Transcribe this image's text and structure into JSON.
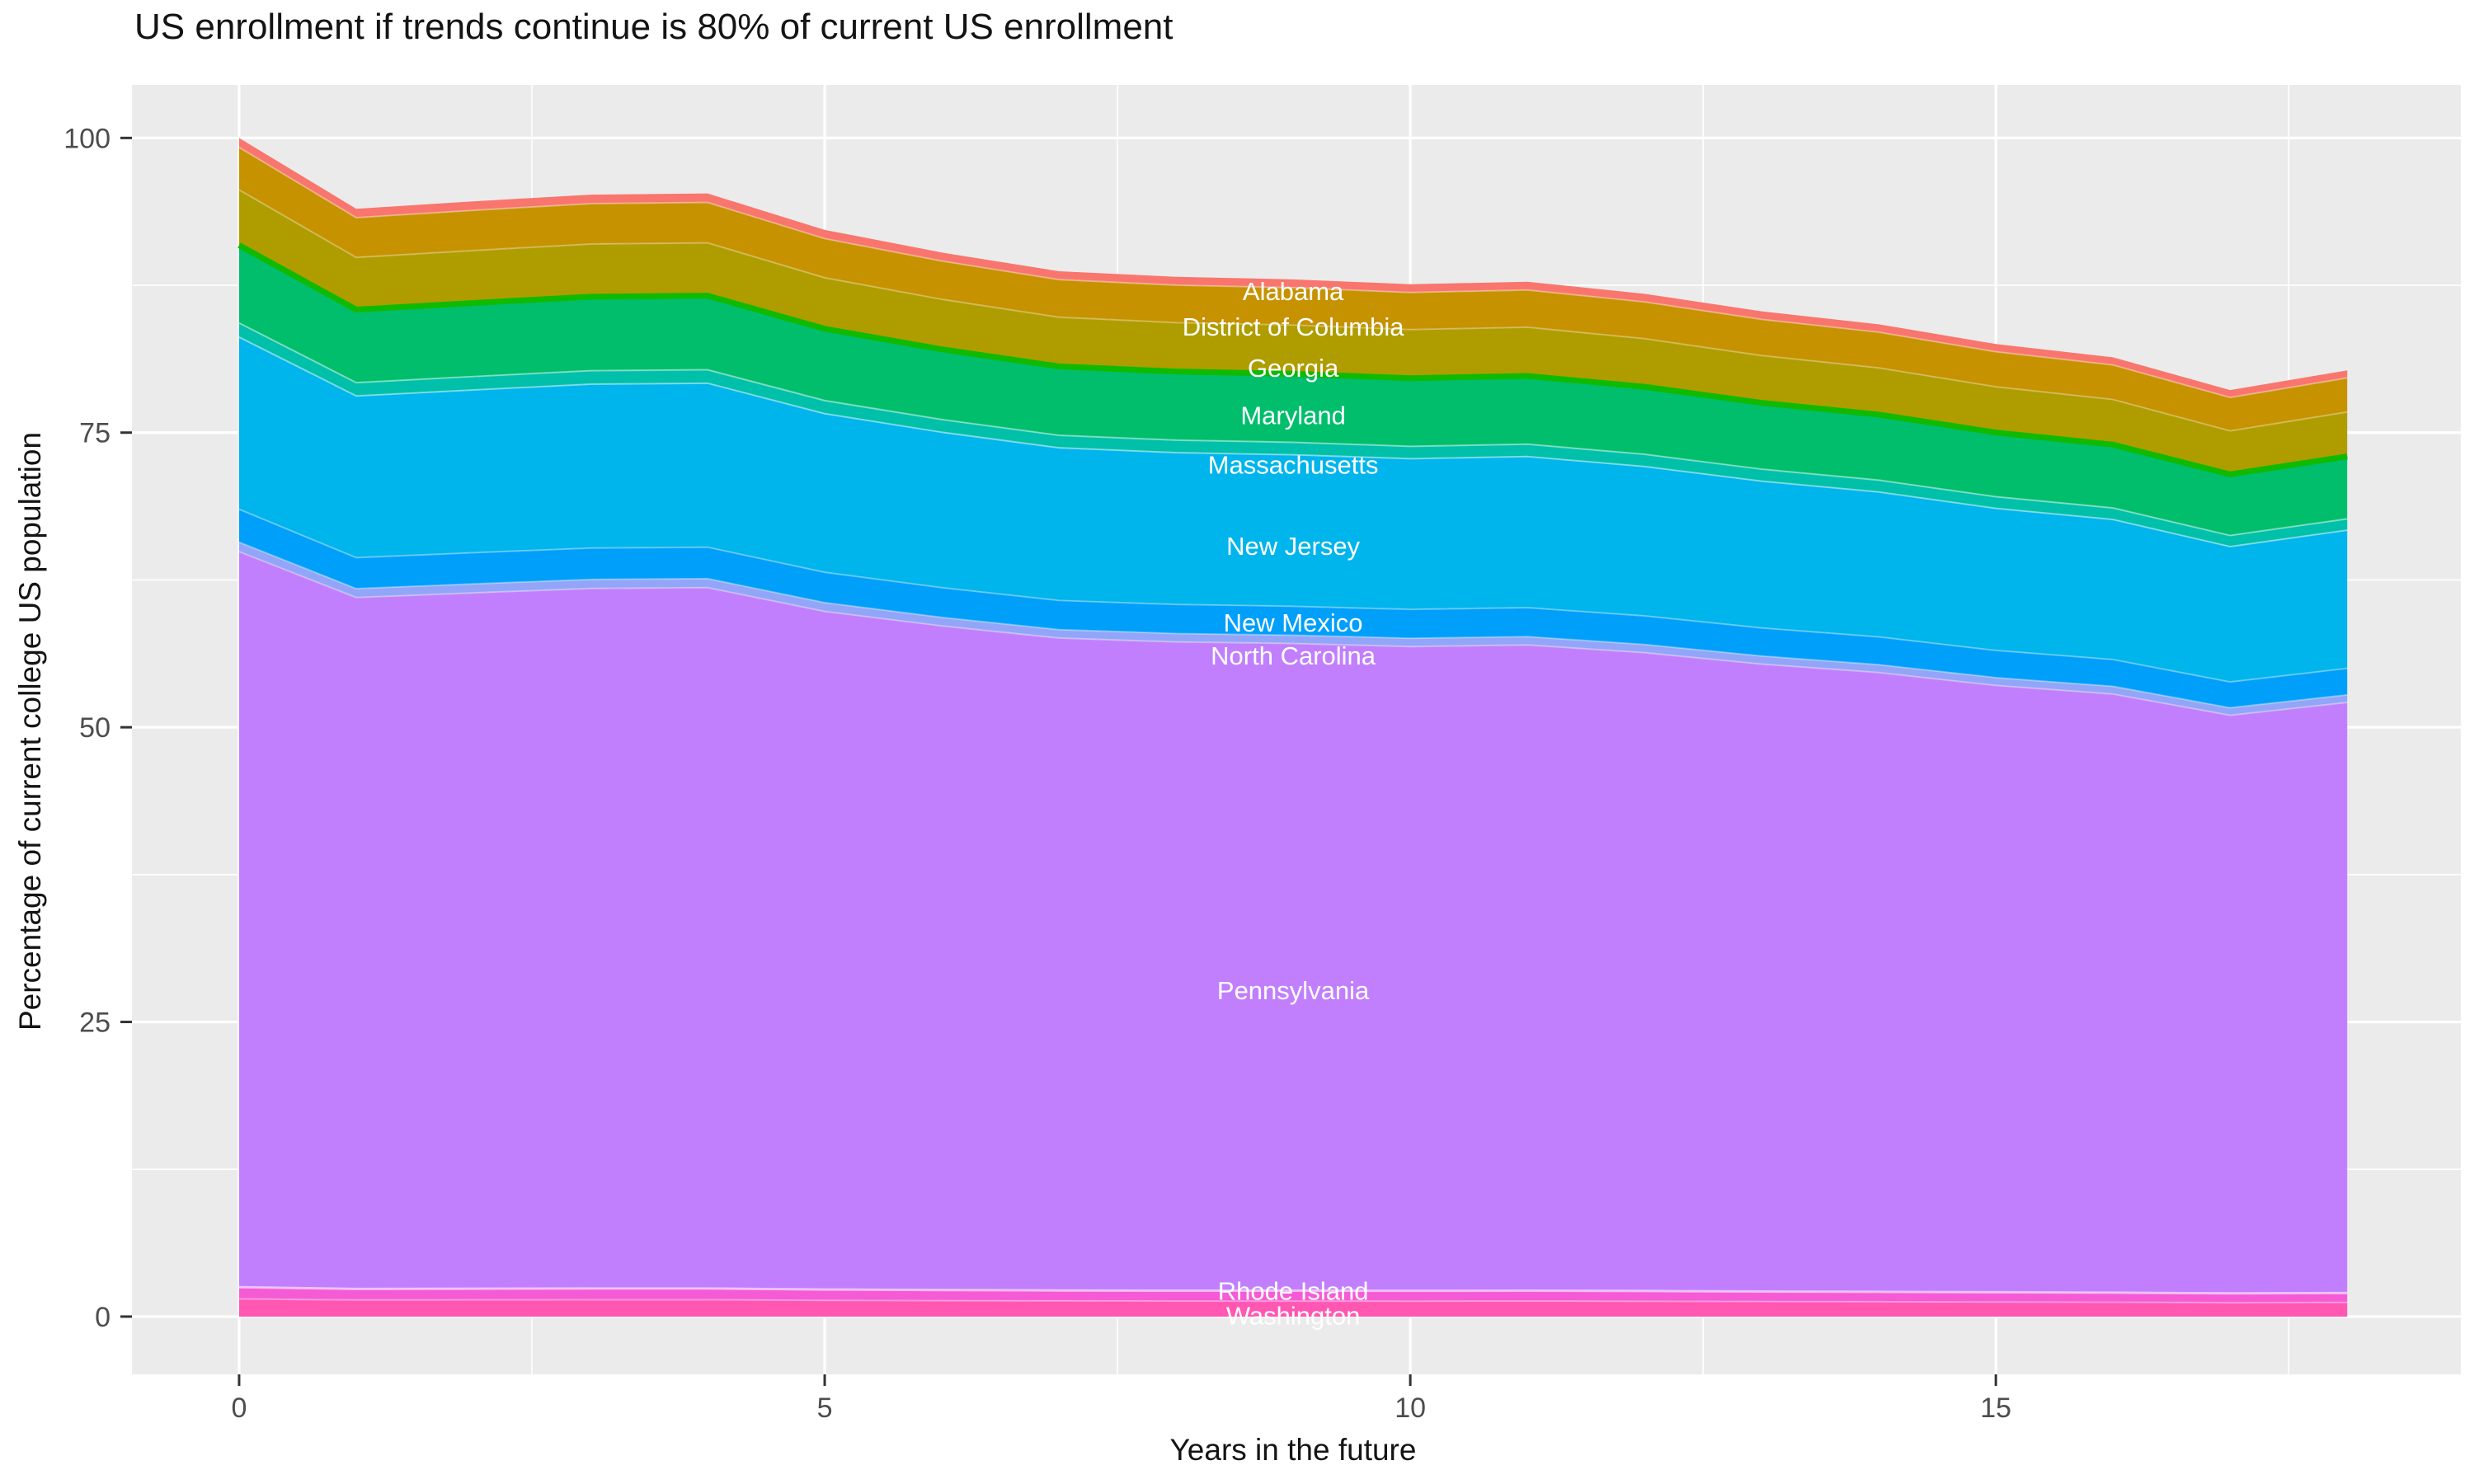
{
  "title": "US enrollment if trends continue is 80% of current US enrollment",
  "panel": {
    "bg": "#EBEBEB",
    "grid_major_color": "#FFFFFF",
    "grid_minor_color": "#FFFFFF",
    "tick_color": "#333333",
    "tick_label_color": "#4D4D4D"
  },
  "chart_data": {
    "type": "area",
    "stacked": true,
    "title": "US enrollment if trends continue is 80% of current US enrollment",
    "xlabel": "Years in the future",
    "ylabel": "Percentage of current college US population",
    "xlim": [
      -0.915,
      18.97
    ],
    "ylim": [
      -4.9,
      104.5
    ],
    "grid": true,
    "legend_position": "none",
    "x": [
      0,
      1,
      2,
      3,
      4,
      5,
      6,
      7,
      8,
      9,
      10,
      11,
      12,
      13,
      14,
      15,
      16,
      17,
      18
    ],
    "x_ticks": [
      {
        "value": 0,
        "label": "0"
      },
      {
        "value": 5,
        "label": "5"
      },
      {
        "value": 10,
        "label": "10"
      },
      {
        "value": 15,
        "label": "15"
      }
    ],
    "y_ticks": [
      {
        "value": 0,
        "label": "0"
      },
      {
        "value": 25,
        "label": "25"
      },
      {
        "value": 50,
        "label": "50"
      },
      {
        "value": 75,
        "label": "75"
      },
      {
        "value": 100,
        "label": "100"
      }
    ],
    "x_minor": [
      2.5,
      7.5,
      12.5,
      17.5
    ],
    "y_minor": [
      12.5,
      37.5,
      62.5,
      87.5
    ],
    "stack_totals": [
      100,
      94.0,
      94.6,
      95.2,
      95.3,
      92.2,
      90.3,
      88.7,
      88.2,
      88.0,
      87.6,
      87.8,
      86.8,
      85.3,
      84.2,
      82.5,
      81.4,
      78.6,
      80.3
    ],
    "series": [
      {
        "name": "Alabama",
        "color": "#F8766D",
        "divider": {
          "color": "rgba(255,255,255,0.35)",
          "width": 2
        },
        "values": [
          0.8,
          0.75,
          0.76,
          0.76,
          0.76,
          0.74,
          0.72,
          0.71,
          0.71,
          0.7,
          0.7,
          0.7,
          0.69,
          0.68,
          0.67,
          0.66,
          0.65,
          0.63,
          0.64
        ]
      },
      {
        "name": "District of Columbia",
        "color": "#C69200",
        "divider": {
          "color": "rgba(255,255,255,0.30)",
          "width": 2
        },
        "values": [
          3.6,
          3.38,
          3.41,
          3.43,
          3.43,
          3.32,
          3.25,
          3.19,
          3.18,
          3.17,
          3.15,
          3.16,
          3.12,
          3.07,
          3.03,
          2.97,
          2.93,
          2.83,
          2.89
        ]
      },
      {
        "name": "Georgia",
        "color": "#AF9D00",
        "divider": {
          "color": "#0FBA00",
          "width": 7
        },
        "values": [
          4.7,
          4.42,
          4.45,
          4.47,
          4.48,
          4.33,
          4.24,
          4.17,
          4.15,
          4.14,
          4.12,
          4.13,
          4.08,
          4.01,
          3.96,
          3.88,
          3.83,
          3.69,
          3.77
        ]
      },
      {
        "name": "Maryland",
        "color": "#00BE6C",
        "divider": {
          "color": "rgba(255,255,255,0.45)",
          "width": 2
        },
        "values": [
          6.6,
          6.2,
          6.24,
          6.28,
          6.29,
          6.09,
          5.96,
          5.85,
          5.82,
          5.81,
          5.78,
          5.79,
          5.73,
          5.63,
          5.56,
          5.45,
          5.37,
          5.19,
          5.3
        ]
      },
      {
        "name": "Massachusetts",
        "color": "#00C0A9",
        "divider": {
          "color": "rgba(255,255,255,0.45)",
          "width": 2
        },
        "values": [
          1.2,
          1.13,
          1.14,
          1.14,
          1.14,
          1.11,
          1.08,
          1.06,
          1.06,
          1.06,
          1.05,
          1.05,
          1.04,
          1.02,
          1.01,
          0.99,
          0.98,
          0.94,
          0.96
        ]
      },
      {
        "name": "New Jersey",
        "color": "#00B4EC",
        "divider": {
          "color": "rgba(255,255,255,0.35)",
          "width": 2
        },
        "values": [
          14.6,
          13.72,
          13.81,
          13.9,
          13.91,
          13.46,
          13.18,
          12.95,
          12.88,
          12.85,
          12.79,
          12.82,
          12.67,
          12.45,
          12.29,
          12.05,
          11.88,
          11.48,
          11.72
        ]
      },
      {
        "name": "New Mexico",
        "color": "#009FFA",
        "divider": {
          "color": "rgba(255,255,255,0.35)",
          "width": 2
        },
        "values": [
          2.8,
          2.63,
          2.65,
          2.67,
          2.67,
          2.58,
          2.53,
          2.48,
          2.47,
          2.46,
          2.45,
          2.46,
          2.43,
          2.39,
          2.36,
          2.31,
          2.28,
          2.2,
          2.25
        ]
      },
      {
        "name": "North Carolina",
        "color": "#92A5F8",
        "divider": {
          "color": "rgba(255,255,255,0.35)",
          "width": 2
        },
        "values": [
          0.8,
          0.75,
          0.76,
          0.76,
          0.76,
          0.74,
          0.72,
          0.71,
          0.71,
          0.7,
          0.7,
          0.7,
          0.69,
          0.68,
          0.67,
          0.66,
          0.65,
          0.63,
          0.64
        ]
      },
      {
        "name": "Pennsylvania",
        "color": "#C17FFD",
        "divider": {
          "color": "rgba(255,255,255,0.55)",
          "width": 3
        },
        "values": [
          62.4,
          58.66,
          59.03,
          59.4,
          59.47,
          57.53,
          56.35,
          55.35,
          55.04,
          54.91,
          54.66,
          54.79,
          54.16,
          53.23,
          52.54,
          51.48,
          50.79,
          49.05,
          50.11
        ]
      },
      {
        "name": "Rhode Island",
        "color": "#F45BD5",
        "divider": {
          "color": "rgba(255,255,255,0.35)",
          "width": 2
        },
        "values": [
          1.0,
          0.94,
          0.95,
          0.95,
          0.95,
          0.92,
          0.9,
          0.89,
          0.88,
          0.88,
          0.88,
          0.88,
          0.87,
          0.85,
          0.84,
          0.83,
          0.81,
          0.79,
          0.8
        ]
      },
      {
        "name": "Washington",
        "color": "#FF57B2",
        "divider": null,
        "values": [
          1.5,
          1.41,
          1.42,
          1.43,
          1.43,
          1.38,
          1.35,
          1.33,
          1.32,
          1.32,
          1.31,
          1.32,
          1.3,
          1.28,
          1.26,
          1.24,
          1.22,
          1.18,
          1.2
        ]
      }
    ],
    "labels": [
      {
        "text": "Alabama",
        "x": 9.0,
        "y": 87.0
      },
      {
        "text": "District of Columbia",
        "x": 9.0,
        "y": 84.0
      },
      {
        "text": "Georgia",
        "x": 9.0,
        "y": 80.5
      },
      {
        "text": "Maryland",
        "x": 9.0,
        "y": 76.5
      },
      {
        "text": "Massachusetts",
        "x": 9.0,
        "y": 72.3
      },
      {
        "text": "New Jersey",
        "x": 9.0,
        "y": 65.4
      },
      {
        "text": "New Mexico",
        "x": 9.0,
        "y": 58.9
      },
      {
        "text": "North Carolina",
        "x": 9.0,
        "y": 56.1
      },
      {
        "text": "Pennsylvania",
        "x": 9.0,
        "y": 27.7
      },
      {
        "text": "Rhode Island",
        "x": 9.0,
        "y": 2.2
      },
      {
        "text": "Washington",
        "x": 9.0,
        "y": 0.1
      }
    ],
    "label_style": {
      "color": "#FFFFFF",
      "font_size": 31
    }
  }
}
